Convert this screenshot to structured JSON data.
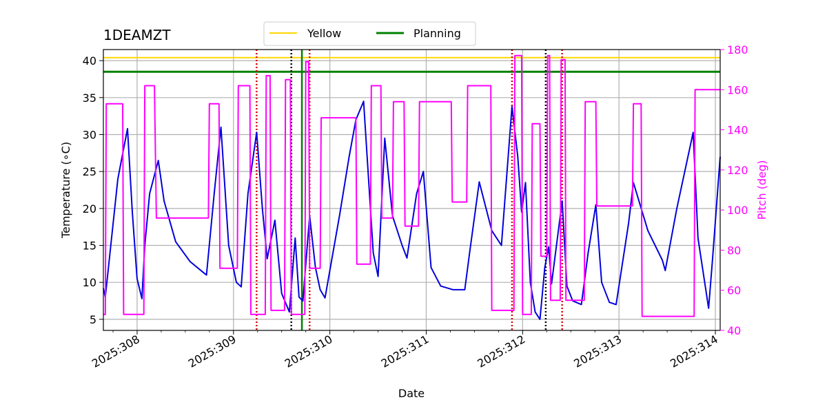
{
  "chart_data": {
    "type": "line",
    "title": "1DEAMZT",
    "xlabel": "Date",
    "ylabel_left": "Temperature (∘C)",
    "ylabel_right": "Pitch (deg)",
    "xlim": [
      307.65,
      314.05
    ],
    "ylim_left": [
      3.5,
      41.5
    ],
    "ylim_right": [
      40,
      180
    ],
    "x_ticks": [
      308,
      309,
      310,
      311,
      312,
      313,
      314
    ],
    "x_tick_labels": [
      "2025:308",
      "2025:309",
      "2025:310",
      "2025:311",
      "2025:312",
      "2025:313",
      "2025:314"
    ],
    "y_ticks_left": [
      5,
      10,
      15,
      20,
      25,
      30,
      35,
      40
    ],
    "y_tick_labels_left": [
      "5",
      "10",
      "15",
      "20",
      "25",
      "30",
      "35",
      "40"
    ],
    "y_ticks_right": [
      40,
      60,
      80,
      100,
      120,
      140,
      160,
      180
    ],
    "y_tick_labels_right": [
      "40",
      "60",
      "80",
      "100",
      "120",
      "140",
      "160",
      "180"
    ],
    "grid": true,
    "legend": {
      "position": "top-center",
      "entries": [
        {
          "label": "Yellow",
          "color": "#ffd700"
        },
        {
          "label": "Planning",
          "color": "#008000"
        }
      ]
    },
    "hlines": [
      {
        "name": "Yellow",
        "y": 40.4,
        "color": "#ffd700"
      },
      {
        "name": "Planning",
        "y": 38.5,
        "color": "#008000"
      }
    ],
    "vlines": [
      {
        "x": 309.24,
        "color": "#dd0000",
        "style": "dotted"
      },
      {
        "x": 309.6,
        "color": "#000000",
        "style": "dotted"
      },
      {
        "x": 309.71,
        "color": "#008000",
        "style": "solid"
      },
      {
        "x": 309.79,
        "color": "#dd0000",
        "style": "dotted"
      },
      {
        "x": 311.89,
        "color": "#dd0000",
        "style": "dotted"
      },
      {
        "x": 312.24,
        "color": "#000000",
        "style": "dotted"
      },
      {
        "x": 312.41,
        "color": "#dd0000",
        "style": "dotted"
      }
    ],
    "series": [
      {
        "name": "Temperature",
        "axis": "left",
        "color": "#0000dd",
        "x": [
          307.65,
          307.67,
          307.8,
          307.9,
          307.95,
          308.0,
          308.05,
          308.08,
          308.13,
          308.22,
          308.28,
          308.4,
          308.55,
          308.7,
          308.72,
          308.8,
          308.87,
          308.95,
          309.03,
          309.08,
          309.15,
          309.24,
          309.3,
          309.35,
          309.43,
          309.5,
          309.58,
          309.64,
          309.68,
          309.72,
          309.79,
          309.85,
          309.9,
          309.95,
          310.1,
          310.2,
          310.27,
          310.35,
          310.45,
          310.5,
          310.57,
          310.65,
          310.75,
          310.8,
          310.9,
          310.97,
          311.05,
          311.15,
          311.28,
          311.4,
          311.45,
          311.55,
          311.68,
          311.78,
          311.89,
          311.95,
          311.99,
          312.03,
          312.08,
          312.13,
          312.18,
          312.23,
          312.27,
          312.3,
          312.41,
          312.46,
          312.52,
          312.61,
          312.68,
          312.76,
          312.82,
          312.9,
          312.97,
          313.1,
          313.15,
          313.3,
          313.45,
          313.48,
          313.6,
          313.77,
          313.82,
          313.93,
          313.97,
          314.05
        ],
        "y": [
          9.2,
          8.0,
          24.0,
          30.8,
          19.5,
          10.5,
          7.8,
          15.0,
          22.0,
          26.5,
          21.0,
          15.5,
          12.8,
          11.2,
          11.0,
          22.0,
          31.0,
          15.0,
          10.0,
          9.4,
          22.0,
          30.3,
          20.0,
          13.2,
          18.4,
          8.5,
          6.0,
          16.0,
          8.0,
          7.5,
          19.0,
          12.0,
          9.0,
          7.9,
          19.0,
          27.0,
          32.0,
          34.5,
          14.0,
          10.8,
          29.5,
          19.0,
          15.0,
          13.3,
          22.0,
          25.0,
          12.0,
          9.5,
          9.0,
          9.0,
          14.0,
          23.6,
          17.0,
          15.0,
          33.8,
          27.0,
          19.5,
          23.5,
          10.0,
          6.0,
          5.0,
          12.0,
          14.8,
          9.8,
          21.0,
          9.5,
          7.5,
          7.0,
          14.0,
          20.5,
          10.0,
          7.3,
          7.0,
          18.0,
          23.5,
          17.0,
          13.0,
          11.6,
          20.0,
          30.3,
          16.0,
          6.5,
          13.0,
          27.0
        ]
      },
      {
        "name": "Pitch",
        "axis": "right",
        "color": "#ff00ff",
        "x": [
          307.65,
          307.67,
          307.68,
          307.85,
          307.86,
          308.03,
          308.04,
          308.07,
          308.08,
          308.18,
          308.2,
          308.74,
          308.75,
          308.85,
          308.86,
          309.04,
          309.05,
          309.17,
          309.18,
          309.24,
          309.25,
          309.33,
          309.34,
          309.38,
          309.39,
          309.46,
          309.47,
          309.53,
          309.54,
          309.59,
          309.6,
          309.68,
          309.69,
          309.74,
          309.75,
          309.78,
          309.79,
          309.9,
          309.91,
          310.15,
          310.16,
          310.27,
          310.28,
          310.42,
          310.43,
          310.53,
          310.54,
          310.65,
          310.66,
          310.77,
          310.78,
          310.82,
          310.83,
          310.92,
          310.93,
          311.26,
          311.27,
          311.37,
          311.38,
          311.42,
          311.43,
          311.67,
          311.68,
          311.88,
          311.89,
          311.91,
          311.92,
          311.99,
          312.0,
          312.02,
          312.03,
          312.09,
          312.1,
          312.18,
          312.19,
          312.25,
          312.26,
          312.28,
          312.29,
          312.32,
          312.33,
          312.39,
          312.4,
          312.44,
          312.45,
          312.58,
          312.59,
          312.64,
          312.65,
          312.76,
          312.77,
          312.97,
          312.98,
          313.14,
          313.15,
          313.23,
          313.24,
          313.5,
          313.51,
          313.78,
          313.79,
          313.9,
          313.91,
          313.98,
          313.99,
          314.05
        ],
        "y": [
          48,
          48,
          153,
          153,
          48,
          48,
          48,
          48,
          162,
          162,
          96,
          96,
          153,
          153,
          71,
          71,
          162,
          162,
          48,
          48,
          48,
          48,
          167,
          167,
          50,
          50,
          50,
          50,
          165,
          165,
          48,
          48,
          48,
          48,
          174,
          174,
          71,
          71,
          146,
          146,
          146,
          146,
          73,
          73,
          162,
          162,
          96,
          96,
          154,
          154,
          92,
          92,
          92,
          92,
          154,
          154,
          104,
          104,
          104,
          104,
          162,
          162,
          50,
          50,
          50,
          50,
          177,
          177,
          48,
          48,
          48,
          48,
          143,
          143,
          77,
          77,
          177,
          177,
          55,
          55,
          55,
          55,
          175,
          175,
          55,
          55,
          55,
          55,
          154,
          154,
          102,
          102,
          102,
          102,
          153,
          153,
          47,
          47,
          47,
          47,
          160,
          160,
          160,
          160,
          160,
          160
        ]
      }
    ]
  }
}
